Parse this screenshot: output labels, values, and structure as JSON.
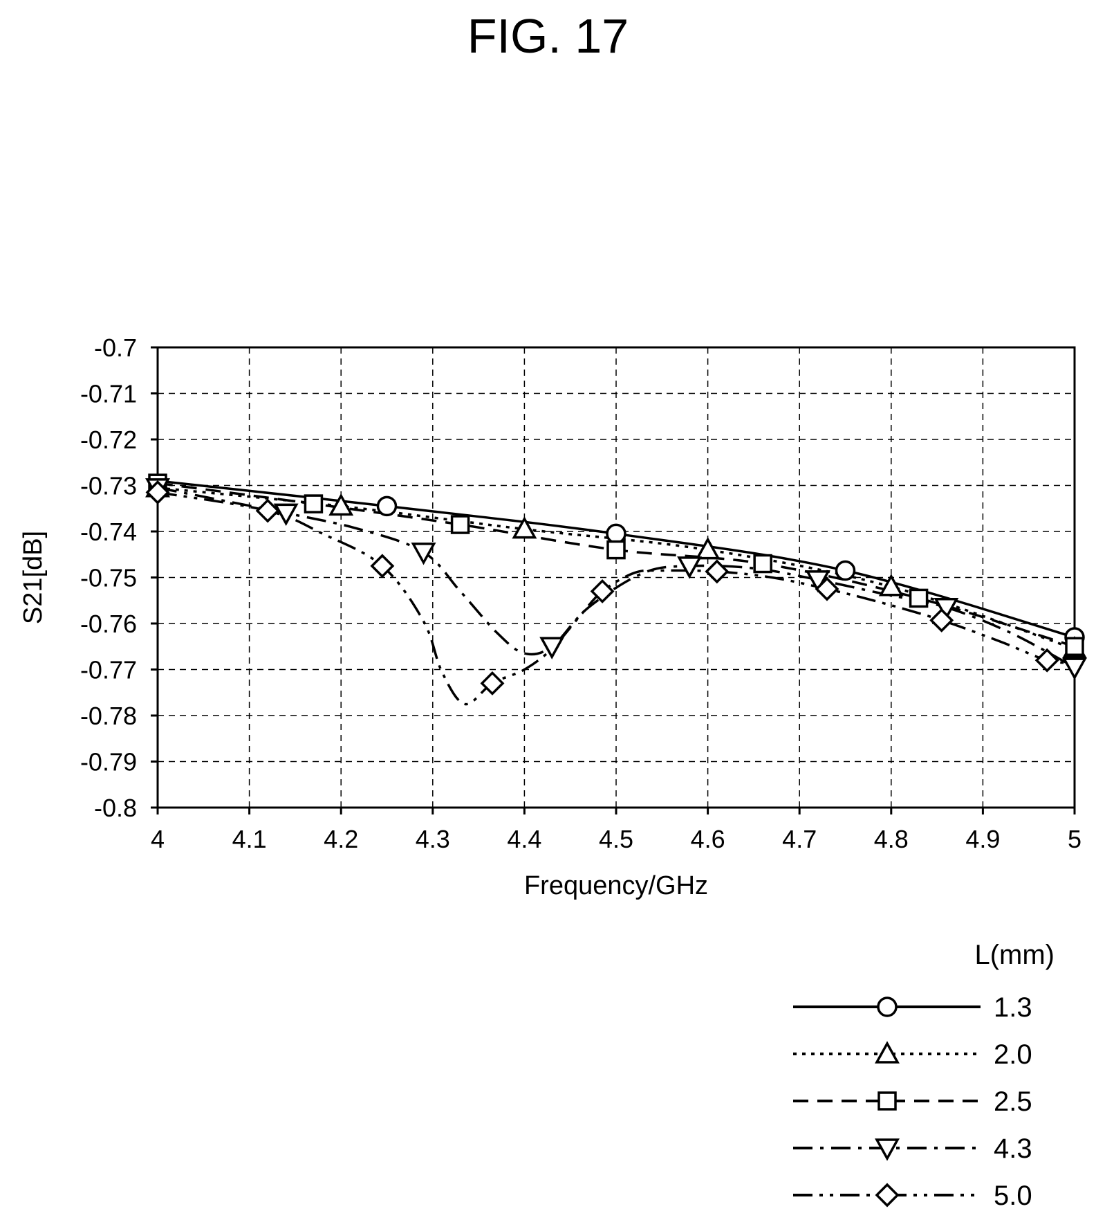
{
  "figure": {
    "title": "FIG. 17"
  },
  "chart_data": {
    "type": "line",
    "title": "FIG. 17",
    "xlabel": "Frequency/GHz",
    "ylabel": "S21[dB]",
    "xlim": [
      4,
      5
    ],
    "ylim": [
      -0.8,
      -0.7
    ],
    "xticks": [
      "4",
      "4.1",
      "4.2",
      "4.3",
      "4.4",
      "4.5",
      "4.6",
      "4.7",
      "4.8",
      "4.9",
      "5"
    ],
    "yticks": [
      "-0.7",
      "-0.71",
      "-0.72",
      "-0.73",
      "-0.74",
      "-0.75",
      "-0.76",
      "-0.77",
      "-0.78",
      "-0.79",
      "-0.8"
    ],
    "grid": true,
    "legend": {
      "title": "L(mm)",
      "position": "bottom-right"
    },
    "series": [
      {
        "name": "1.3",
        "marker": "circle",
        "dash": "solid",
        "x": [
          4.0,
          4.25,
          4.5,
          4.75,
          5.0
        ],
        "y": [
          -0.729,
          -0.7345,
          -0.7405,
          -0.7485,
          -0.763
        ],
        "markers_x": [
          4.25,
          4.5,
          4.75,
          5.0
        ],
        "markers_y": [
          -0.7345,
          -0.7405,
          -0.7485,
          -0.763
        ]
      },
      {
        "name": "2.0",
        "marker": "triangle-up",
        "dash": "dotted",
        "x": [
          4.0,
          4.2,
          4.4,
          4.6,
          4.8,
          5.0
        ],
        "y": [
          -0.7305,
          -0.7345,
          -0.7395,
          -0.744,
          -0.752,
          -0.7655
        ],
        "markers_x": [
          4.0,
          4.2,
          4.4,
          4.6,
          4.8,
          5.0
        ],
        "markers_y": [
          -0.7305,
          -0.7345,
          -0.7395,
          -0.744,
          -0.752,
          -0.7655
        ]
      },
      {
        "name": "2.5",
        "marker": "square",
        "dash": "dashed",
        "x": [
          4.0,
          4.17,
          4.33,
          4.5,
          4.66,
          4.83,
          5.0
        ],
        "y": [
          -0.7295,
          -0.734,
          -0.7385,
          -0.744,
          -0.747,
          -0.7545,
          -0.765
        ],
        "markers_x": [
          4.0,
          4.17,
          4.33,
          4.5,
          4.66,
          4.83,
          5.0
        ],
        "markers_y": [
          -0.7295,
          -0.734,
          -0.7385,
          -0.744,
          -0.747,
          -0.7545,
          -0.765
        ]
      },
      {
        "name": "4.3",
        "marker": "triangle-down",
        "dash": "dashdot",
        "x": [
          4.0,
          4.14,
          4.22,
          4.29,
          4.33,
          4.37,
          4.4,
          4.43,
          4.47,
          4.53,
          4.58,
          4.65,
          4.72,
          4.79,
          4.86,
          4.93,
          5.0
        ],
        "y": [
          -0.7305,
          -0.736,
          -0.7395,
          -0.7445,
          -0.753,
          -0.762,
          -0.7665,
          -0.765,
          -0.7565,
          -0.749,
          -0.7475,
          -0.748,
          -0.7505,
          -0.7535,
          -0.7565,
          -0.762,
          -0.7695
        ],
        "markers_x": [
          4.0,
          4.14,
          4.29,
          4.43,
          4.58,
          4.72,
          4.86,
          5.0
        ],
        "markers_y": [
          -0.7305,
          -0.736,
          -0.7445,
          -0.765,
          -0.7475,
          -0.7505,
          -0.7565,
          -0.7695
        ]
      },
      {
        "name": "5.0",
        "marker": "diamond",
        "dash": "dashdotdot",
        "x": [
          4.0,
          4.12,
          4.18,
          4.245,
          4.29,
          4.31,
          4.335,
          4.365,
          4.4,
          4.43,
          4.46,
          4.485,
          4.52,
          4.55,
          4.61,
          4.67,
          4.73,
          4.79,
          4.855,
          4.92,
          4.97,
          5.0
        ],
        "y": [
          -0.7315,
          -0.7355,
          -0.7405,
          -0.7475,
          -0.7595,
          -0.7705,
          -0.7775,
          -0.773,
          -0.77,
          -0.7655,
          -0.7585,
          -0.753,
          -0.749,
          -0.7485,
          -0.7487,
          -0.75,
          -0.7525,
          -0.7555,
          -0.7593,
          -0.764,
          -0.768,
          -0.7685
        ],
        "markers_x": [
          4.0,
          4.12,
          4.245,
          4.365,
          4.485,
          4.61,
          4.73,
          4.855,
          4.97
        ],
        "markers_y": [
          -0.7315,
          -0.7355,
          -0.7475,
          -0.773,
          -0.753,
          -0.7487,
          -0.7525,
          -0.7593,
          -0.768
        ]
      }
    ]
  }
}
